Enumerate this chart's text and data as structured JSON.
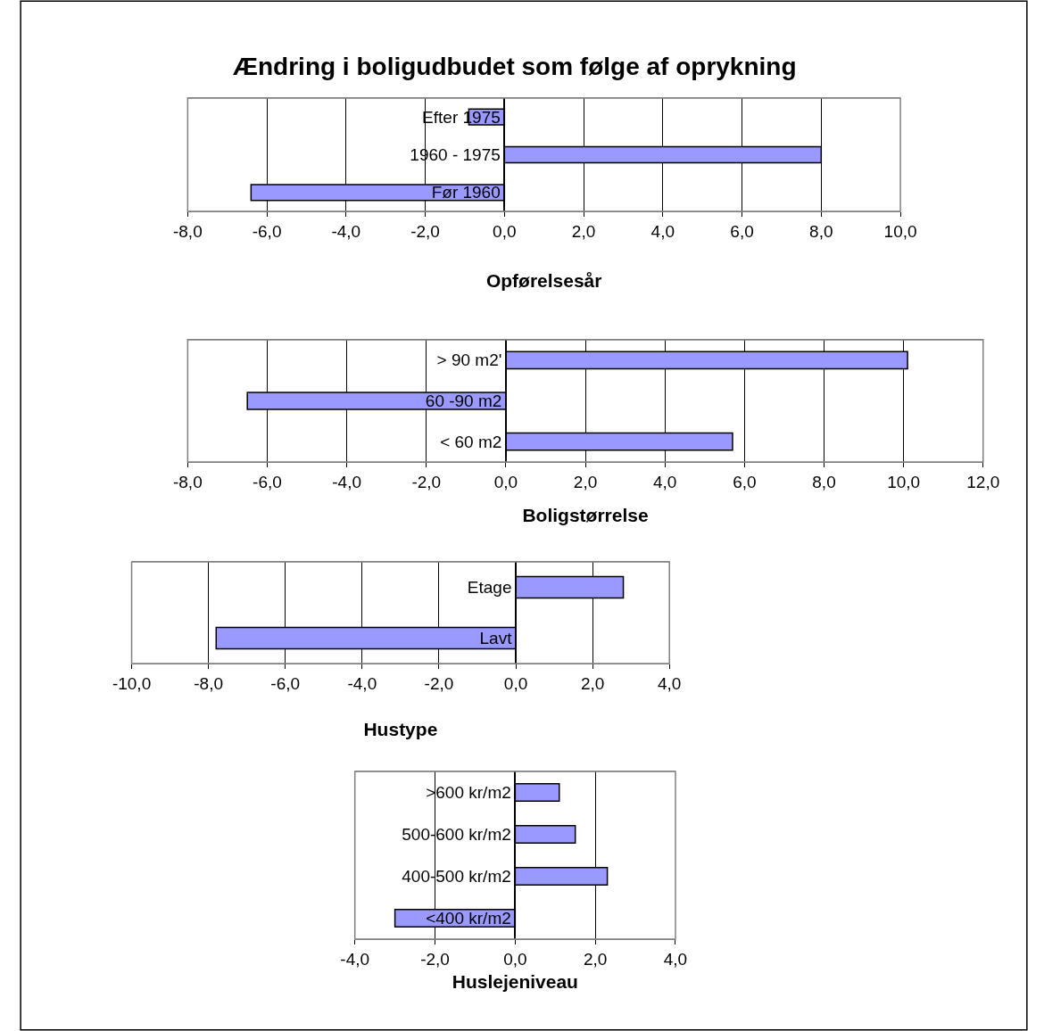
{
  "chart_data": [
    {
      "type": "bar",
      "orientation": "horizontal",
      "title": "Ændring i boligudbudet som følge af oprykning",
      "xlabel": "Opførelsesår",
      "categories": [
        "Efter 1975",
        "1960 - 1975",
        "Før 1960"
      ],
      "values": [
        -0.9,
        8.0,
        -6.4
      ],
      "color": "#9999ff",
      "xlim": [
        -8,
        10
      ],
      "xticks": [
        {
          "value": -8,
          "label": "-8,0"
        },
        {
          "value": -6,
          "label": "-6,0"
        },
        {
          "value": -4,
          "label": "-4,0"
        },
        {
          "value": -2,
          "label": "-2,0"
        },
        {
          "value": 0,
          "label": "0,0"
        },
        {
          "value": 2,
          "label": "2,0"
        },
        {
          "value": 4,
          "label": "4,0"
        },
        {
          "value": 6,
          "label": "6,0"
        },
        {
          "value": 8,
          "label": "8,0"
        },
        {
          "value": 10,
          "label": "10,0"
        }
      ],
      "grid": "x"
    },
    {
      "type": "bar",
      "orientation": "horizontal",
      "xlabel": "Boligstørrelse",
      "categories": [
        "> 90 m2'",
        "60 -90 m2",
        "< 60 m2"
      ],
      "values": [
        10.1,
        -6.5,
        5.7
      ],
      "color": "#9999ff",
      "xlim": [
        -8,
        12
      ],
      "xticks": [
        {
          "value": -8,
          "label": "-8,0"
        },
        {
          "value": -6,
          "label": "-6,0"
        },
        {
          "value": -4,
          "label": "-4,0"
        },
        {
          "value": -2,
          "label": "-2,0"
        },
        {
          "value": 0,
          "label": "0,0"
        },
        {
          "value": 2,
          "label": "2,0"
        },
        {
          "value": 4,
          "label": "4,0"
        },
        {
          "value": 6,
          "label": "6,0"
        },
        {
          "value": 8,
          "label": "8,0"
        },
        {
          "value": 10,
          "label": "10,0"
        },
        {
          "value": 12,
          "label": "12,0"
        }
      ],
      "grid": "x"
    },
    {
      "type": "bar",
      "orientation": "horizontal",
      "xlabel": "Hustype",
      "categories": [
        "Etage",
        "Lavt"
      ],
      "values": [
        2.8,
        -7.8
      ],
      "color": "#9999ff",
      "xlim": [
        -10,
        4
      ],
      "xticks": [
        {
          "value": -10,
          "label": "-10,0"
        },
        {
          "value": -8,
          "label": "-8,0"
        },
        {
          "value": -6,
          "label": "-6,0"
        },
        {
          "value": -4,
          "label": "-4,0"
        },
        {
          "value": -2,
          "label": "-2,0"
        },
        {
          "value": 0,
          "label": "0,0"
        },
        {
          "value": 2,
          "label": "2,0"
        },
        {
          "value": 4,
          "label": "4,0"
        }
      ],
      "grid": "x"
    },
    {
      "type": "bar",
      "orientation": "horizontal",
      "xlabel": "Huslejeniveau",
      "categories": [
        ">600 kr/m2",
        "500-600 kr/m2",
        "400-500 kr/m2",
        "<400 kr/m2"
      ],
      "values": [
        1.1,
        1.5,
        2.3,
        -3.0
      ],
      "color": "#9999ff",
      "xlim": [
        -4,
        4
      ],
      "xticks": [
        {
          "value": -4,
          "label": "-4,0"
        },
        {
          "value": -2,
          "label": "-2,0"
        },
        {
          "value": 0,
          "label": "0,0"
        },
        {
          "value": 2,
          "label": "2,0"
        },
        {
          "value": 4,
          "label": "4,0"
        }
      ],
      "grid": "x"
    }
  ]
}
